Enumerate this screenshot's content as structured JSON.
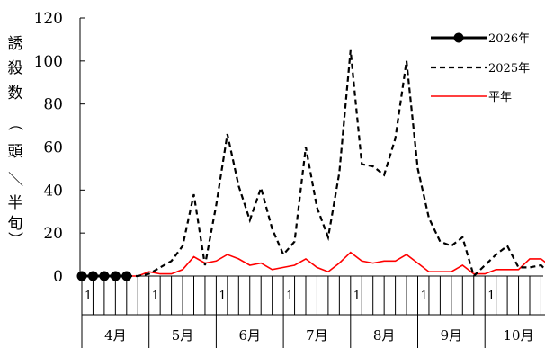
{
  "chart_data": {
    "type": "line",
    "ylabel": "誘殺数（頭／半旬）",
    "ylim": [
      0,
      120
    ],
    "y_ticks": [
      "0",
      "20",
      "40",
      "60",
      "80",
      "100",
      "120"
    ],
    "x_unit": "半旬",
    "months": [
      "4月",
      "5月",
      "6月",
      "7月",
      "8月",
      "9月",
      "10月"
    ],
    "first_pentad_label": "1",
    "legend_position": "top-right",
    "series": [
      {
        "name": "2026年",
        "style": "solid-marker",
        "color": "#000000",
        "values": [
          0,
          0,
          0,
          0,
          0
        ]
      },
      {
        "name": "2025年",
        "style": "dashed",
        "color": "#000000",
        "values": [
          0,
          0,
          0,
          0,
          0,
          0,
          1,
          4,
          7,
          14,
          38,
          5,
          33,
          66,
          42,
          26,
          41,
          22,
          10,
          16,
          60,
          32,
          18,
          48,
          105,
          52,
          51,
          47,
          64,
          100,
          50,
          27,
          16,
          14,
          18,
          0,
          5,
          10,
          14,
          4,
          4,
          5,
          0
        ]
      },
      {
        "name": "平年",
        "style": "solid",
        "color": "#ff0000",
        "values": [
          0,
          0,
          0,
          0,
          0,
          0,
          2,
          1,
          1,
          3,
          9,
          6,
          7,
          10,
          8,
          5,
          6,
          3,
          4,
          5,
          8,
          4,
          2,
          6,
          11,
          7,
          6,
          7,
          7,
          10,
          6,
          2,
          2,
          2,
          5,
          1,
          1,
          3,
          3,
          3,
          8,
          8,
          4
        ]
      }
    ]
  }
}
